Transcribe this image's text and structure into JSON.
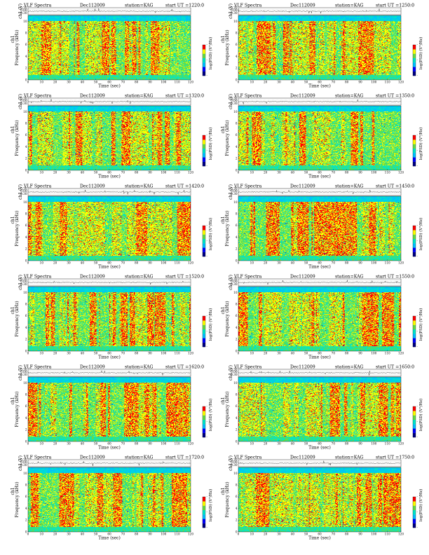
{
  "chart_data": [
    {
      "type": "heatmap",
      "title_parts": [
        "VLF Spectra",
        "Dec112009",
        "station=KAG",
        "start UT =1220:0"
      ],
      "trace_label": "ch1 (V)",
      "trace_ticks": [
        "0.30",
        "0.00",
        "-0.30"
      ],
      "ylabel": "Frequency (kHz)",
      "ylabel_prefix": "ch1",
      "xlabel": "Time (sec)",
      "x_ticks": [
        0,
        10,
        20,
        30,
        40,
        50,
        60,
        70,
        80,
        90,
        100,
        110,
        120
      ],
      "xlim": [
        0,
        120
      ],
      "y_ticks": [
        0,
        2,
        4,
        6,
        8,
        10
      ],
      "ylim": [
        0,
        11
      ],
      "colorbar_label": "log(PSD) (V²/Hz)",
      "colorbar_ticks": [
        "-",
        "-",
        "-"
      ],
      "colors": [
        "#000080",
        "#0000ff",
        "#00bfff",
        "#00e6c8",
        "#66dd44",
        "#ffff00",
        "#ff0000"
      ]
    },
    {
      "type": "heatmap",
      "title_parts": [
        "VLF Spectra",
        "Dec112009",
        "station=KAG",
        "start UT =1250:0"
      ],
      "trace_label": "ch1 (V)",
      "trace_ticks": [
        "0.30",
        "0.00",
        "-0.30"
      ],
      "ylabel": "Frequency (kHz)",
      "ylabel_prefix": "ch1",
      "xlabel": "Time (sec)",
      "x_ticks": [
        0,
        10,
        20,
        30,
        40,
        50,
        60,
        70,
        80,
        90,
        100,
        110,
        120
      ],
      "xlim": [
        0,
        120
      ],
      "y_ticks": [
        0,
        2,
        4,
        6,
        8,
        10
      ],
      "ylim": [
        0,
        11
      ],
      "colorbar_label": "log(PSD) (V²/Hz)",
      "colorbar_ticks": [
        "-",
        "-",
        "-"
      ],
      "colors": [
        "#000080",
        "#0000ff",
        "#00bfff",
        "#00e6c8",
        "#66dd44",
        "#ffff00",
        "#ff0000"
      ]
    },
    {
      "type": "heatmap",
      "title_parts": [
        "VLF Spectra",
        "Dec112009",
        "station=KAG",
        "start UT =1320:0"
      ],
      "trace_label": "ch1 (V)",
      "trace_ticks": [
        "0.30",
        "0.00",
        "-0.30"
      ],
      "ylabel": "Frequency (kHz)",
      "ylabel_prefix": "ch1",
      "xlabel": "Time (sec)",
      "x_ticks": [
        0,
        10,
        20,
        30,
        40,
        50,
        60,
        70,
        80,
        90,
        100,
        110,
        120
      ],
      "xlim": [
        0,
        120
      ],
      "y_ticks": [
        0,
        2,
        4,
        6,
        8,
        10
      ],
      "ylim": [
        0,
        11
      ],
      "colorbar_label": "log(PSD) (V²/Hz)",
      "colorbar_ticks": [
        "-",
        "-",
        "-"
      ],
      "colors": [
        "#000080",
        "#0000ff",
        "#00bfff",
        "#00e6c8",
        "#66dd44",
        "#ffff00",
        "#ff0000"
      ]
    },
    {
      "type": "heatmap",
      "title_parts": [
        "VLF Spectra",
        "Dec112009",
        "station=KAG",
        "start UT =1350:0"
      ],
      "trace_label": "ch1 (V)",
      "trace_ticks": [
        "0.30",
        "0.00",
        "-0.30"
      ],
      "ylabel": "Frequency (kHz)",
      "ylabel_prefix": "ch1",
      "xlabel": "Time (sec)",
      "x_ticks": [
        0,
        10,
        20,
        30,
        40,
        50,
        60,
        70,
        80,
        90,
        100,
        110,
        120
      ],
      "xlim": [
        0,
        120
      ],
      "y_ticks": [
        0,
        2,
        4,
        6,
        8,
        10
      ],
      "ylim": [
        0,
        11
      ],
      "colorbar_label": "log(PSD) (V²/Hz)",
      "colorbar_ticks": [
        "-",
        "-",
        "-"
      ],
      "colors": [
        "#000080",
        "#0000ff",
        "#00bfff",
        "#00e6c8",
        "#66dd44",
        "#ffff00",
        "#ff0000"
      ]
    },
    {
      "type": "heatmap",
      "title_parts": [
        "VLF Spectra",
        "Dec112009",
        "station=KAG",
        "start UT =1420:0"
      ],
      "trace_label": "ch1 (V)",
      "trace_ticks": [
        "0.30",
        "0.00",
        "-0.30"
      ],
      "ylabel": "Frequency (kHz)",
      "ylabel_prefix": "ch1",
      "xlabel": "Time (sec)",
      "x_ticks": [
        0,
        10,
        20,
        30,
        40,
        50,
        60,
        70,
        80,
        90,
        100,
        110,
        120
      ],
      "xlim": [
        0,
        120
      ],
      "y_ticks": [
        0,
        2,
        4,
        6,
        8,
        10
      ],
      "ylim": [
        0,
        11
      ],
      "colorbar_label": "log(PSD) (V²/Hz)",
      "colorbar_ticks": [
        "-",
        "-",
        "-"
      ],
      "colors": [
        "#000080",
        "#0000ff",
        "#00bfff",
        "#00e6c8",
        "#66dd44",
        "#ffff00",
        "#ff0000"
      ]
    },
    {
      "type": "heatmap",
      "title_parts": [
        "VLF Spectra",
        "Dec112009",
        "station=KAG",
        "start UT =1450:0"
      ],
      "trace_label": "ch1 (V)",
      "trace_ticks": [
        "0.30",
        "0.00",
        "-0.30"
      ],
      "ylabel": "Frequency (kHz)",
      "ylabel_prefix": "ch1",
      "xlabel": "Time (sec)",
      "x_ticks": [
        0,
        10,
        20,
        30,
        40,
        50,
        60,
        70,
        80,
        90,
        100,
        110,
        120
      ],
      "xlim": [
        0,
        120
      ],
      "y_ticks": [
        0,
        2,
        4,
        6,
        8,
        10
      ],
      "ylim": [
        0,
        11
      ],
      "colorbar_label": "log(PSD) (V²/Hz)",
      "colorbar_ticks": [
        "-",
        "-",
        "-"
      ],
      "colors": [
        "#000080",
        "#0000ff",
        "#00bfff",
        "#00e6c8",
        "#66dd44",
        "#ffff00",
        "#ff0000"
      ]
    },
    {
      "type": "heatmap",
      "title_parts": [
        "VLF Spectra",
        "Dec112009",
        "station=KAG",
        "start UT =1520:0"
      ],
      "trace_label": "ch1 (V)",
      "trace_ticks": [
        "0.30",
        "0.00",
        "-0.30"
      ],
      "ylabel": "Frequency (kHz)",
      "ylabel_prefix": "ch1",
      "xlabel": "Time (sec)",
      "x_ticks": [
        0,
        10,
        20,
        30,
        40,
        50,
        60,
        70,
        80,
        90,
        100,
        110,
        120
      ],
      "xlim": [
        0,
        120
      ],
      "y_ticks": [
        0,
        2,
        4,
        6,
        8,
        10
      ],
      "ylim": [
        0,
        11
      ],
      "colorbar_label": "log(PSD) (V²/Hz)",
      "colorbar_ticks": [
        "-",
        "-",
        "-"
      ],
      "colors": [
        "#000080",
        "#0000ff",
        "#00bfff",
        "#00e6c8",
        "#66dd44",
        "#ffff00",
        "#ff0000"
      ]
    },
    {
      "type": "heatmap",
      "title_parts": [
        "VLF Spectra",
        "Dec112009",
        "station=KAG",
        "start UT =1550:0"
      ],
      "trace_label": "ch1 (V)",
      "trace_ticks": [
        "0.30",
        "0.00",
        "-0.30"
      ],
      "ylabel": "Frequency (kHz)",
      "ylabel_prefix": "ch1",
      "xlabel": "Time (sec)",
      "x_ticks": [
        0,
        10,
        20,
        30,
        40,
        50,
        60,
        70,
        80,
        90,
        100,
        110,
        120
      ],
      "xlim": [
        0,
        120
      ],
      "y_ticks": [
        0,
        2,
        4,
        6,
        8,
        10
      ],
      "ylim": [
        0,
        11
      ],
      "colorbar_label": "log(PSD) (V²/Hz)",
      "colorbar_ticks": [
        "-",
        "-",
        "-"
      ],
      "colors": [
        "#000080",
        "#0000ff",
        "#00bfff",
        "#00e6c8",
        "#66dd44",
        "#ffff00",
        "#ff0000"
      ]
    },
    {
      "type": "heatmap",
      "title_parts": [
        "VLF Spectra",
        "Dec112009",
        "station=KAG",
        "start UT =1620:0"
      ],
      "trace_label": "ch1 (V)",
      "trace_ticks": [
        "0.30",
        "0.00",
        "-0.30"
      ],
      "ylabel": "Frequency (kHz)",
      "ylabel_prefix": "ch1",
      "xlabel": "Time (sec)",
      "x_ticks": [
        0,
        10,
        20,
        30,
        40,
        50,
        60,
        70,
        80,
        90,
        100,
        110,
        120
      ],
      "xlim": [
        0,
        120
      ],
      "y_ticks": [
        0,
        2,
        4,
        6,
        8,
        10
      ],
      "ylim": [
        0,
        11
      ],
      "colorbar_label": "log(PSD) (V²/Hz)",
      "colorbar_ticks": [
        "-",
        "-",
        "-"
      ],
      "colors": [
        "#000080",
        "#0000ff",
        "#00bfff",
        "#00e6c8",
        "#66dd44",
        "#ffff00",
        "#ff0000"
      ]
    },
    {
      "type": "heatmap",
      "title_parts": [
        "VLF Spectra",
        "Dec112009",
        "station=KAG",
        "start UT =1650:0"
      ],
      "trace_label": "ch1 (V)",
      "trace_ticks": [
        "0.30",
        "0.00",
        "-0.30"
      ],
      "ylabel": "Frequency (kHz)",
      "ylabel_prefix": "ch1",
      "xlabel": "Time (sec)",
      "x_ticks": [
        0,
        10,
        20,
        30,
        40,
        50,
        60,
        70,
        80,
        90,
        100,
        110,
        120
      ],
      "xlim": [
        0,
        120
      ],
      "y_ticks": [
        0,
        2,
        4,
        6,
        8,
        10
      ],
      "ylim": [
        0,
        11
      ],
      "colorbar_label": "log(PSD) (V²/Hz)",
      "colorbar_ticks": [
        "-",
        "-",
        "-"
      ],
      "colors": [
        "#000080",
        "#0000ff",
        "#00bfff",
        "#00e6c8",
        "#66dd44",
        "#ffff00",
        "#ff0000"
      ]
    },
    {
      "type": "heatmap",
      "title_parts": [
        "VLF Spectra",
        "Dec112009",
        "station=KAG",
        "start UT =1720:0"
      ],
      "trace_label": "ch1 (V)",
      "trace_ticks": [
        "0.30",
        "0.00",
        "-0.30"
      ],
      "ylabel": "Frequency (kHz)",
      "ylabel_prefix": "ch1",
      "xlabel": "Time (sec)",
      "x_ticks": [
        0,
        10,
        20,
        30,
        40,
        50,
        60,
        70,
        80,
        90,
        100,
        110,
        120
      ],
      "xlim": [
        0,
        120
      ],
      "y_ticks": [
        0,
        2,
        4,
        6,
        8,
        10
      ],
      "ylim": [
        0,
        11
      ],
      "colorbar_label": "log(PSD) (V²/Hz)",
      "colorbar_ticks": [
        "-",
        "-",
        "-"
      ],
      "colors": [
        "#000080",
        "#0000ff",
        "#00bfff",
        "#00e6c8",
        "#66dd44",
        "#ffff00",
        "#ff0000"
      ]
    },
    {
      "type": "heatmap",
      "title_parts": [
        "VLF Spectra",
        "Dec112009",
        "station=KAG",
        "start UT =1750:0"
      ],
      "trace_label": "ch1 (V)",
      "trace_ticks": [
        "0.30",
        "0.00",
        "-0.30"
      ],
      "ylabel": "Frequency (kHz)",
      "ylabel_prefix": "ch1",
      "xlabel": "Time (sec)",
      "x_ticks": [
        0,
        10,
        20,
        30,
        40,
        50,
        60,
        70,
        80,
        90,
        100,
        110,
        120
      ],
      "xlim": [
        0,
        120
      ],
      "y_ticks": [
        0,
        2,
        4,
        6,
        8,
        10
      ],
      "ylim": [
        0,
        11
      ],
      "colorbar_label": "log(PSD) (V²/Hz)",
      "colorbar_ticks": [
        "-",
        "-",
        "-"
      ],
      "colors": [
        "#000080",
        "#0000ff",
        "#00bfff",
        "#00e6c8",
        "#66dd44",
        "#ffff00",
        "#ff0000"
      ]
    }
  ]
}
